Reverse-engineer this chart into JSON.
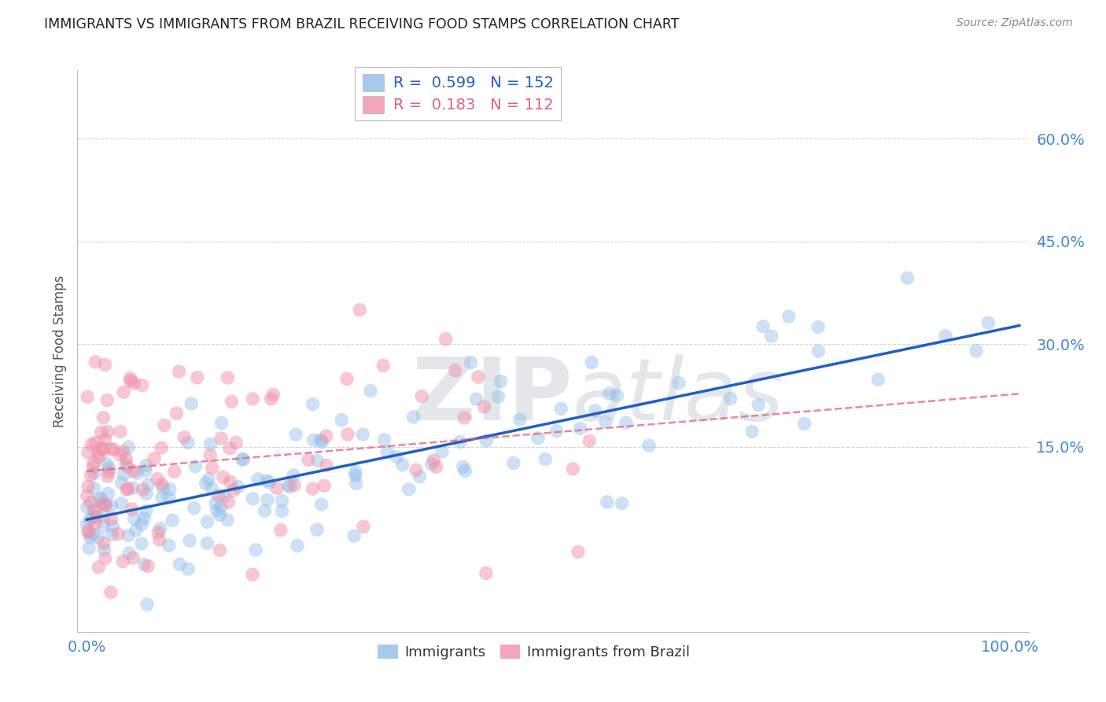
{
  "title": "IMMIGRANTS VS IMMIGRANTS FROM BRAZIL RECEIVING FOOD STAMPS CORRELATION CHART",
  "source": "Source: ZipAtlas.com",
  "ylabel_label": "Receiving Food Stamps",
  "ytick_labels": [
    "15.0%",
    "30.0%",
    "45.0%",
    "60.0%"
  ],
  "ytick_values": [
    0.15,
    0.3,
    0.45,
    0.6
  ],
  "xlim": [
    -0.01,
    1.02
  ],
  "ylim": [
    -0.12,
    0.7
  ],
  "blue_R": 0.599,
  "blue_N": 152,
  "pink_R": 0.183,
  "pink_N": 112,
  "blue_color": "#90bce8",
  "pink_color": "#f090a8",
  "blue_line_color": "#2060c0",
  "pink_line_color": "#e06080",
  "watermark_zip": "ZIP",
  "watermark_atlas": "atlas",
  "watermark_color": "#d0d8e8",
  "background_color": "#ffffff",
  "grid_color": "#c8c8c8",
  "title_color": "#222222",
  "axis_label_color": "#555555",
  "tick_label_color": "#4488cc",
  "seed": 99
}
